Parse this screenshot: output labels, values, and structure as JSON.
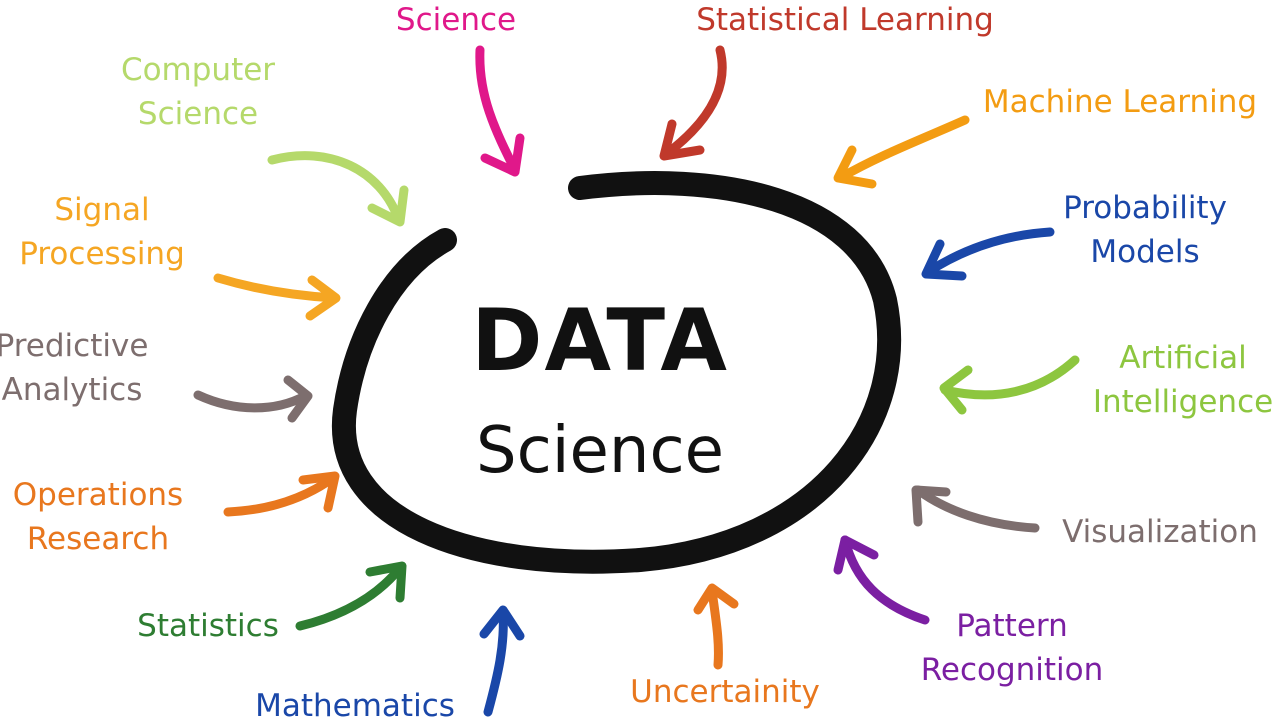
{
  "center": {
    "line1": "DATA",
    "line2": "Science",
    "color": "#111111"
  },
  "terms": [
    {
      "key": "science",
      "lines": [
        "Science"
      ],
      "color": "#e0188a"
    },
    {
      "key": "statistical-learning",
      "lines": [
        "Statistical Learning"
      ],
      "color": "#c0392b"
    },
    {
      "key": "machine-learning",
      "lines": [
        "Machine Learning"
      ],
      "color": "#f39c12"
    },
    {
      "key": "probability-models",
      "lines": [
        "Probability",
        "Models"
      ],
      "color": "#1a47a8"
    },
    {
      "key": "artificial-intelligence",
      "lines": [
        "Artificial",
        "Intelligence"
      ],
      "color": "#8dc63f"
    },
    {
      "key": "visualization",
      "lines": [
        "Visualization"
      ],
      "color": "#7d6e6e"
    },
    {
      "key": "pattern-recognition",
      "lines": [
        "Pattern",
        "Recognition"
      ],
      "color": "#7b1fa2"
    },
    {
      "key": "uncertainity",
      "lines": [
        "Uncertainity"
      ],
      "color": "#e8771e"
    },
    {
      "key": "mathematics",
      "lines": [
        "Mathematics"
      ],
      "color": "#1a47a8"
    },
    {
      "key": "statistics",
      "lines": [
        "Statistics"
      ],
      "color": "#2e7d32"
    },
    {
      "key": "operations-research",
      "lines": [
        "Operations",
        "Research"
      ],
      "color": "#e8771e"
    },
    {
      "key": "predictive-analytics",
      "lines": [
        "Predictive",
        "Analytics"
      ],
      "color": "#7d6e6e"
    },
    {
      "key": "signal-processing",
      "lines": [
        "Signal",
        "Processing"
      ],
      "color": "#f5a623"
    },
    {
      "key": "computer-science",
      "lines": [
        "Computer",
        "Science"
      ],
      "color": "#b5d96b"
    }
  ]
}
